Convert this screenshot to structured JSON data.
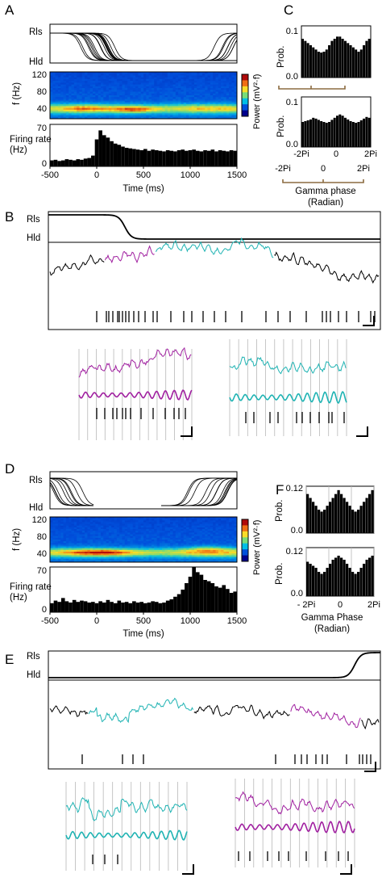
{
  "panel_labels": {
    "A": "A",
    "B": "B",
    "C": "C",
    "D": "D",
    "E": "E",
    "F": "F"
  },
  "state_labels": {
    "rls": "Rls",
    "hld": "Hld"
  },
  "axis_text": {
    "f_hz": "f (Hz)",
    "firing_rate": "Firing rate\n(Hz)",
    "time_ms": "Time (ms)",
    "power": "Power (mV²·f)",
    "prob": "Prob.",
    "gamma_phase_C": "Gamma phase\n(Radian)",
    "gamma_phase_F": "Gamma Phase\n(Radian)"
  },
  "ticks": {
    "time": [
      "-500",
      "0",
      "500",
      "1000",
      "1500"
    ],
    "freq": [
      "120",
      "80",
      "40"
    ],
    "rate": [
      "70",
      "0"
    ],
    "prob_C": [
      "0.1",
      "0.0"
    ],
    "prob_F": [
      "0.12",
      "0.0"
    ],
    "phase_C_top": [
      "-2Pi",
      "0",
      "2Pi"
    ],
    "phase_C_bottom": [
      "-2Pi",
      "0",
      "2Pi"
    ],
    "phase_F": [
      "- 2Pi",
      "0",
      "2Pi"
    ]
  },
  "colors": {
    "cyan": "#1fb3b3",
    "magenta": "#a020a0",
    "phase_bracket": "#8b6b40",
    "grid": "#b8b8b8"
  },
  "chart_data": [
    {
      "type": "bar",
      "panel": "A",
      "title": "",
      "xlabel": "Time (ms)",
      "ylabel": "Firing rate (Hz)",
      "xlim": [
        -500,
        1500
      ],
      "ylim": [
        0,
        70
      ],
      "x": [
        -480,
        -440,
        -400,
        -360,
        -320,
        -280,
        -240,
        -200,
        -160,
        -120,
        -80,
        -40,
        0,
        40,
        80,
        120,
        160,
        200,
        240,
        280,
        320,
        360,
        400,
        440,
        480,
        520,
        560,
        600,
        640,
        680,
        720,
        760,
        800,
        840,
        880,
        920,
        960,
        1000,
        1040,
        1080,
        1120,
        1160,
        1200,
        1240,
        1280,
        1320,
        1360,
        1400,
        1440,
        1480
      ],
      "values": [
        10,
        11,
        9,
        10,
        12,
        11,
        10,
        12,
        11,
        13,
        14,
        18,
        45,
        60,
        52,
        48,
        42,
        38,
        36,
        33,
        31,
        30,
        29,
        28,
        27,
        29,
        26,
        28,
        27,
        26,
        25,
        27,
        26,
        25,
        27,
        28,
        26,
        27,
        28,
        26,
        25,
        27,
        26,
        28,
        25,
        27,
        26,
        25,
        27,
        26
      ]
    },
    {
      "type": "heatmap",
      "panel": "A",
      "xlabel": "",
      "ylabel": "f (Hz)",
      "ylim": [
        20,
        120
      ],
      "xlim": [
        -500,
        1500
      ],
      "note_band_hz": [
        30,
        50
      ]
    },
    {
      "type": "bar",
      "panel": "C-top",
      "xlabel": "",
      "ylabel": "Prob.",
      "ylim": [
        0,
        0.12
      ],
      "values": [
        0.09,
        0.085,
        0.08,
        0.075,
        0.07,
        0.065,
        0.06,
        0.058,
        0.06,
        0.065,
        0.075,
        0.085,
        0.09,
        0.095,
        0.095,
        0.09,
        0.085,
        0.08,
        0.075,
        0.07,
        0.065,
        0.06,
        0.065,
        0.075,
        0.085,
        0.09
      ]
    },
    {
      "type": "bar",
      "panel": "C-bottom",
      "xlabel": "Gamma phase (Radian)",
      "ylabel": "Prob.",
      "ylim": [
        0,
        0.12
      ],
      "x_ticks": [
        "-2Pi",
        "0",
        "2Pi"
      ],
      "values": [
        0.06,
        0.062,
        0.064,
        0.066,
        0.07,
        0.068,
        0.065,
        0.062,
        0.06,
        0.058,
        0.06,
        0.065,
        0.07,
        0.075,
        0.078,
        0.075,
        0.07,
        0.066,
        0.062,
        0.06,
        0.058,
        0.06,
        0.064,
        0.068,
        0.072,
        0.07
      ]
    },
    {
      "type": "bar",
      "panel": "D",
      "xlabel": "Time (ms)",
      "ylabel": "Firing rate (Hz)",
      "xlim": [
        -500,
        1500
      ],
      "ylim": [
        0,
        70
      ],
      "x": [
        -480,
        -440,
        -400,
        -360,
        -320,
        -280,
        -240,
        -200,
        -160,
        -120,
        -80,
        -40,
        0,
        40,
        80,
        120,
        160,
        200,
        240,
        280,
        320,
        360,
        400,
        440,
        480,
        520,
        560,
        600,
        640,
        680,
        720,
        760,
        800,
        840,
        880,
        920,
        960,
        1000,
        1040,
        1080,
        1120,
        1160,
        1200,
        1240,
        1280,
        1320,
        1360,
        1400,
        1440,
        1480
      ],
      "values": [
        14,
        18,
        16,
        22,
        17,
        15,
        19,
        16,
        18,
        17,
        15,
        16,
        14,
        17,
        15,
        19,
        16,
        14,
        18,
        15,
        16,
        14,
        17,
        15,
        16,
        14,
        15,
        17,
        16,
        14,
        15,
        18,
        20,
        24,
        28,
        35,
        45,
        55,
        70,
        62,
        58,
        50,
        48,
        45,
        40,
        38,
        42,
        36,
        30,
        32
      ]
    },
    {
      "type": "bar",
      "panel": "F-top",
      "xlabel": "",
      "ylabel": "Prob.",
      "ylim": [
        0,
        0.12
      ],
      "values": [
        0.1,
        0.09,
        0.08,
        0.07,
        0.06,
        0.055,
        0.06,
        0.07,
        0.08,
        0.09,
        0.1,
        0.11,
        0.1,
        0.09,
        0.08,
        0.07,
        0.06,
        0.055,
        0.06,
        0.07,
        0.08,
        0.09,
        0.1,
        0.11
      ]
    },
    {
      "type": "bar",
      "panel": "F-bottom",
      "xlabel": "Gamma Phase (Radian)",
      "ylabel": "Prob.",
      "ylim": [
        0,
        0.12
      ],
      "x_ticks": [
        "- 2Pi",
        "0",
        "2Pi"
      ],
      "values": [
        0.085,
        0.08,
        0.075,
        0.07,
        0.06,
        0.055,
        0.06,
        0.07,
        0.08,
        0.09,
        0.095,
        0.1,
        0.095,
        0.09,
        0.08,
        0.07,
        0.06,
        0.055,
        0.06,
        0.07,
        0.08,
        0.09,
        0.095,
        0.1
      ]
    }
  ]
}
